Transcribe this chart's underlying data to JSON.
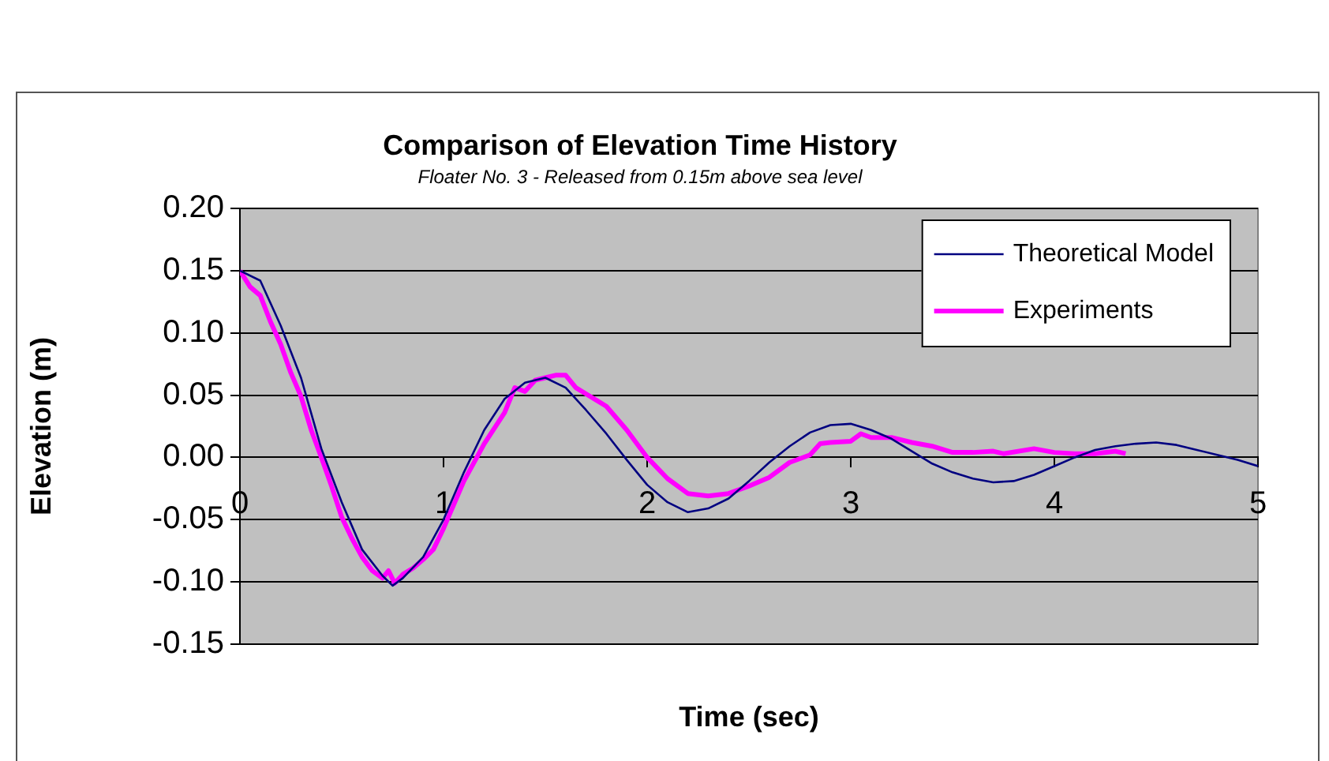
{
  "chart_data": {
    "type": "line",
    "title": "Comparison of Elevation Time History",
    "subtitle": "Floater No. 3 - Released from 0.15m above sea level",
    "xlabel": "Time (sec)",
    "ylabel": "Elevation (m)",
    "xlim": [
      0,
      5
    ],
    "xticks": [
      0,
      1,
      2,
      3,
      4,
      5
    ],
    "ylim": [
      -0.15,
      0.2
    ],
    "yticks": [
      {
        "value": -0.15,
        "label": "-0.15"
      },
      {
        "value": -0.1,
        "label": "-0.10"
      },
      {
        "value": -0.05,
        "label": "-0.05"
      },
      {
        "value": 0,
        "label": "0.00"
      },
      {
        "value": 0.05,
        "label": "0.05"
      },
      {
        "value": 0.1,
        "label": "0.10"
      },
      {
        "value": 0.15,
        "label": "0.15"
      },
      {
        "value": 0.2,
        "label": "0.20"
      }
    ],
    "grid": "y",
    "legend": "top right",
    "marker": "none",
    "line_style": "solid",
    "series": [
      {
        "name": "Theoretical Model",
        "color": "#000080",
        "x": [
          0,
          0.1,
          0.2,
          0.3,
          0.4,
          0.5,
          0.6,
          0.7,
          0.75,
          0.8,
          0.9,
          1.0,
          1.1,
          1.2,
          1.3,
          1.4,
          1.5,
          1.6,
          1.7,
          1.8,
          1.9,
          2.0,
          2.1,
          2.2,
          2.3,
          2.4,
          2.5,
          2.6,
          2.7,
          2.8,
          2.9,
          3.0,
          3.1,
          3.2,
          3.3,
          3.4,
          3.5,
          3.6,
          3.7,
          3.8,
          3.9,
          4.0,
          4.1,
          4.2,
          4.3,
          4.4,
          4.5,
          4.6,
          4.7,
          4.8,
          4.9,
          5.0
        ],
        "values": [
          0.15,
          0.142,
          0.106,
          0.064,
          0.007,
          -0.036,
          -0.074,
          -0.095,
          -0.103,
          -0.097,
          -0.08,
          -0.05,
          -0.012,
          0.022,
          0.047,
          0.06,
          0.064,
          0.056,
          0.038,
          0.019,
          -0.002,
          -0.022,
          -0.036,
          -0.044,
          -0.041,
          -0.033,
          -0.019,
          -0.004,
          0.009,
          0.02,
          0.026,
          0.027,
          0.022,
          0.015,
          0.005,
          -0.005,
          -0.012,
          -0.017,
          -0.02,
          -0.019,
          -0.014,
          -0.007,
          0.0,
          0.006,
          0.009,
          0.011,
          0.012,
          0.01,
          0.006,
          0.002,
          -0.002,
          -0.007
        ]
      },
      {
        "name": "Experiments",
        "color": "#ff00ff",
        "x": [
          0,
          0.05,
          0.1,
          0.15,
          0.2,
          0.25,
          0.3,
          0.35,
          0.4,
          0.45,
          0.5,
          0.55,
          0.6,
          0.65,
          0.7,
          0.73,
          0.76,
          0.8,
          0.85,
          0.9,
          0.95,
          1.0,
          1.1,
          1.2,
          1.3,
          1.35,
          1.4,
          1.45,
          1.5,
          1.55,
          1.6,
          1.65,
          1.7,
          1.8,
          1.9,
          2.0,
          2.1,
          2.2,
          2.3,
          2.4,
          2.5,
          2.6,
          2.7,
          2.8,
          2.85,
          2.9,
          3.0,
          3.05,
          3.1,
          3.2,
          3.3,
          3.4,
          3.5,
          3.6,
          3.7,
          3.75,
          3.9,
          4.0,
          4.1,
          4.2,
          4.3,
          4.35
        ],
        "values": [
          0.15,
          0.137,
          0.13,
          0.109,
          0.091,
          0.068,
          0.049,
          0.022,
          0.0,
          -0.023,
          -0.048,
          -0.065,
          -0.08,
          -0.091,
          -0.097,
          -0.091,
          -0.101,
          -0.094,
          -0.089,
          -0.082,
          -0.074,
          -0.057,
          -0.019,
          0.011,
          0.036,
          0.056,
          0.053,
          0.062,
          0.064,
          0.066,
          0.066,
          0.056,
          0.051,
          0.041,
          0.022,
          0.0,
          -0.017,
          -0.029,
          -0.031,
          -0.029,
          -0.023,
          -0.016,
          -0.004,
          0.002,
          0.011,
          0.012,
          0.013,
          0.019,
          0.016,
          0.016,
          0.012,
          0.009,
          0.004,
          0.004,
          0.005,
          0.003,
          0.007,
          0.004,
          0.003,
          0.003,
          0.005,
          0.003
        ]
      }
    ]
  }
}
